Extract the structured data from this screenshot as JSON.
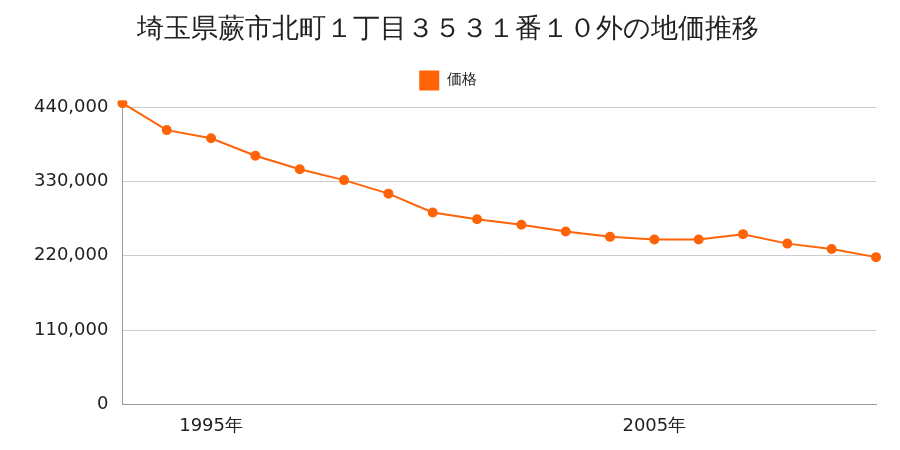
{
  "chart_data": {
    "type": "line",
    "title": "埼玉県蕨市北町１丁目３５３１番１０外の地価推移",
    "categories": [
      null,
      null,
      "1995年",
      null,
      null,
      null,
      null,
      null,
      null,
      null,
      null,
      null,
      "2005年",
      null,
      null,
      null,
      null,
      null
    ],
    "series": [
      {
        "name": "価格",
        "color": "#ff6308",
        "marker": "circle",
        "values": [
          446000,
          406000,
          394000,
          368000,
          348000,
          332000,
          312000,
          284000,
          274000,
          266000,
          256000,
          248000,
          244000,
          244000,
          252000,
          238000,
          230000,
          218000
        ]
      }
    ],
    "ylim": [
      0,
      450000
    ],
    "yticks": [
      0,
      {
        "value": 110000,
        "label": "110,000"
      },
      {
        "value": 220000,
        "label": "220,000"
      },
      {
        "value": 330000,
        "label": "330,000"
      },
      {
        "value": 440000,
        "label": "440,000"
      }
    ],
    "grid": true,
    "legend": "top"
  }
}
